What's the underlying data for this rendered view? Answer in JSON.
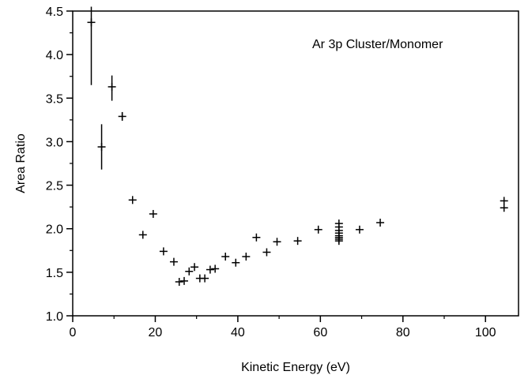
{
  "chart_data": {
    "type": "scatter",
    "title": "",
    "xlabel": "Kinetic Energy (eV)",
    "ylabel": "Area Ratio",
    "xlim": [
      0,
      108
    ],
    "ylim": [
      1.0,
      4.5
    ],
    "x_ticks": [
      0,
      20,
      40,
      60,
      80,
      100
    ],
    "y_ticks": [
      1.0,
      1.5,
      2.0,
      2.5,
      3.0,
      3.5,
      4.0,
      4.5
    ],
    "x_tick_labels": [
      "0",
      "20",
      "40",
      "60",
      "80",
      "100"
    ],
    "y_tick_labels": [
      "1.0",
      "1.5",
      "2.0",
      "2.5",
      "3.0",
      "3.5",
      "4.0",
      "4.5"
    ],
    "grid": false,
    "legend": "none",
    "annotation": "Ar 3p Cluster/Monomer",
    "marker": "plus",
    "color": "#000000",
    "points": [
      {
        "x": 4.5,
        "y": 4.37,
        "err_low": 3.65,
        "err_high": 4.55
      },
      {
        "x": 7.0,
        "y": 2.94,
        "err_low": 2.68,
        "err_high": 3.2
      },
      {
        "x": 9.5,
        "y": 3.63,
        "err_low": 3.47,
        "err_high": 3.76
      },
      {
        "x": 12.0,
        "y": 3.29,
        "err_low": 3.24,
        "err_high": 3.34
      },
      {
        "x": 14.5,
        "y": 2.33
      },
      {
        "x": 17.0,
        "y": 1.93
      },
      {
        "x": 19.5,
        "y": 2.17
      },
      {
        "x": 22.0,
        "y": 1.74
      },
      {
        "x": 24.5,
        "y": 1.62
      },
      {
        "x": 25.8,
        "y": 1.39
      },
      {
        "x": 27.0,
        "y": 1.4
      },
      {
        "x": 28.2,
        "y": 1.51
      },
      {
        "x": 29.5,
        "y": 1.56
      },
      {
        "x": 30.8,
        "y": 1.43
      },
      {
        "x": 32.0,
        "y": 1.43
      },
      {
        "x": 33.3,
        "y": 1.53
      },
      {
        "x": 34.5,
        "y": 1.54
      },
      {
        "x": 37.0,
        "y": 1.68
      },
      {
        "x": 39.5,
        "y": 1.61
      },
      {
        "x": 42.0,
        "y": 1.68
      },
      {
        "x": 44.5,
        "y": 1.9
      },
      {
        "x": 47.0,
        "y": 1.73
      },
      {
        "x": 49.5,
        "y": 1.85
      },
      {
        "x": 54.5,
        "y": 1.86
      },
      {
        "x": 59.5,
        "y": 1.99
      },
      {
        "x": 64.5,
        "y": 2.06
      },
      {
        "x": 64.5,
        "y": 2.02
      },
      {
        "x": 64.5,
        "y": 1.98
      },
      {
        "x": 64.5,
        "y": 1.95
      },
      {
        "x": 64.5,
        "y": 1.92
      },
      {
        "x": 64.5,
        "y": 1.9
      },
      {
        "x": 64.5,
        "y": 1.88
      },
      {
        "x": 64.5,
        "y": 1.86
      },
      {
        "x": 69.5,
        "y": 1.99
      },
      {
        "x": 74.5,
        "y": 2.07
      },
      {
        "x": 104.5,
        "y": 2.32
      },
      {
        "x": 104.5,
        "y": 2.24
      }
    ]
  }
}
